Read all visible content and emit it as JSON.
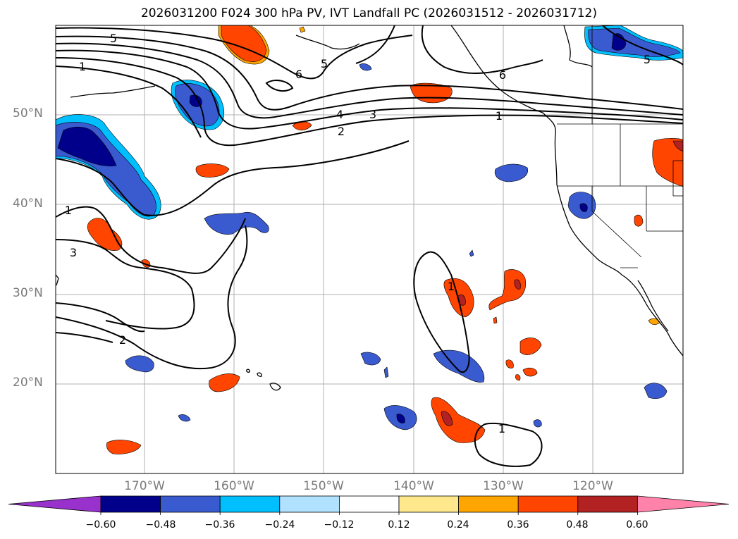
{
  "title": "2026031200 F024 300 hPa PV, IVT Landfall PC (2026031512 - 2026031712)",
  "lat_labels": [
    "50°N",
    "40°N",
    "30°N",
    "20°N"
  ],
  "lon_labels": [
    "170°W",
    "160°W",
    "150°W",
    "140°W",
    "130°W",
    "120°W"
  ],
  "contour_labels": [
    "5",
    "1",
    "6",
    "5",
    "4",
    "3",
    "2",
    "1",
    "6",
    "5",
    "1",
    "3",
    "2",
    "1",
    "1"
  ],
  "colorbar": {
    "ticks": [
      "−0.60",
      "−0.48",
      "−0.36",
      "−0.24",
      "−0.12",
      "0.12",
      "0.24",
      "0.36",
      "0.48",
      "0.60"
    ],
    "colors": [
      "#9932CC",
      "#00008B",
      "#3A5BD0",
      "#00BFFF",
      "#B0E2FF",
      "#FFFFFF",
      "#FFE88C",
      "#FFA500",
      "#FF4500",
      "#B22222",
      "#FF82AB"
    ]
  }
}
